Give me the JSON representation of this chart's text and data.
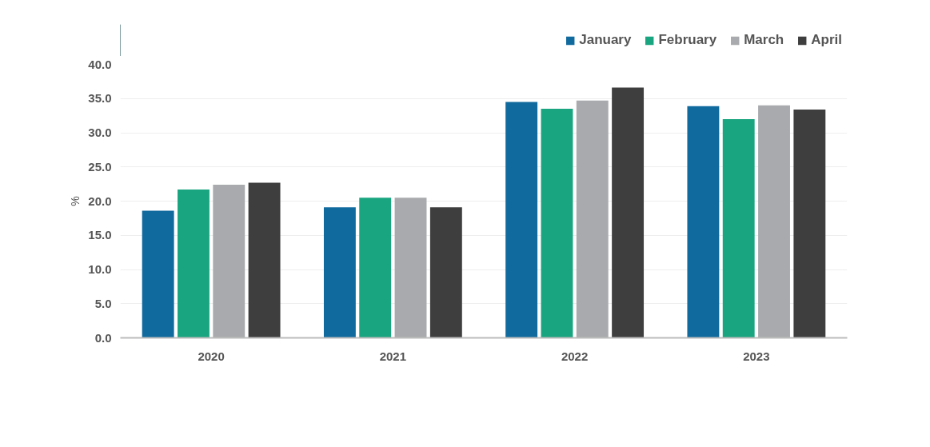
{
  "chart_data": {
    "type": "bar",
    "ylabel": "%",
    "categories": [
      "2020",
      "2021",
      "2022",
      "2023"
    ],
    "series": [
      {
        "name": "January",
        "color": "#106a9e",
        "values": [
          18.6,
          19.1,
          34.5,
          33.9
        ]
      },
      {
        "name": "February",
        "color": "#19a57f",
        "values": [
          21.7,
          20.5,
          33.5,
          32.0
        ]
      },
      {
        "name": "March",
        "color": "#a9aaad",
        "values": [
          22.4,
          20.5,
          34.7,
          34.0
        ]
      },
      {
        "name": "April",
        "color": "#3e3e3e",
        "values": [
          22.7,
          19.1,
          36.6,
          33.4
        ]
      }
    ],
    "ylim": [
      0,
      40
    ],
    "yticks": [
      {
        "value": 0,
        "label": "0.0"
      },
      {
        "value": 5,
        "label": "5.0"
      },
      {
        "value": 10,
        "label": "10.0"
      },
      {
        "value": 15,
        "label": "15.0"
      },
      {
        "value": 20,
        "label": "20.0"
      },
      {
        "value": 25,
        "label": "25.0"
      },
      {
        "value": 30,
        "label": "30.0"
      },
      {
        "value": 35,
        "label": "35.0"
      },
      {
        "value": 40,
        "label": "40.0"
      }
    ],
    "grid": "y",
    "legend": "top right"
  }
}
